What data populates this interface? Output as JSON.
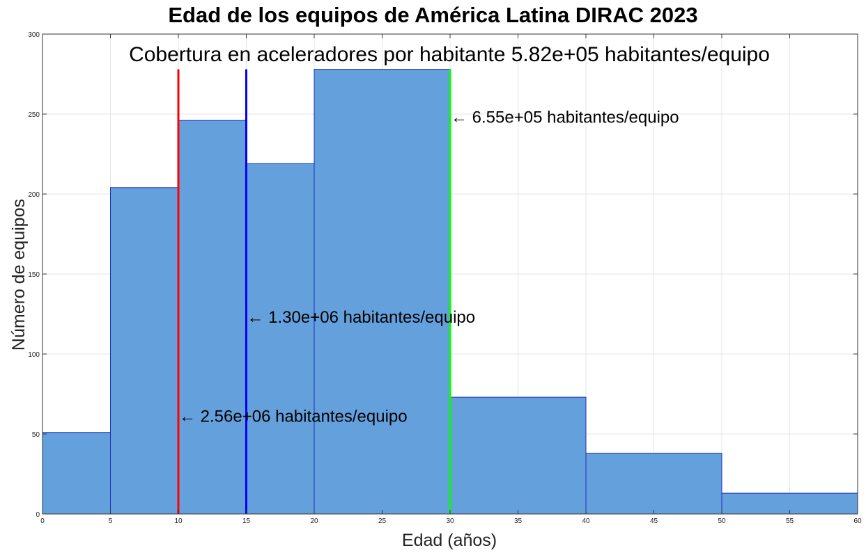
{
  "chart_data": {
    "type": "bar",
    "title": "Edad de los equipos de América Latina DIRAC 2023",
    "subtitle": "Cobertura en aceleradores por habitante 5.82e+05 habitantes/equipo",
    "xlabel": "Edad (años)",
    "ylabel": "Número de equipos",
    "xlim": [
      0,
      60
    ],
    "ylim": [
      0,
      300
    ],
    "xticks": [
      "0",
      "5",
      "10",
      "15",
      "20",
      "25",
      "30",
      "35",
      "40",
      "45",
      "50",
      "55",
      "60"
    ],
    "yticks": [
      "0",
      "50",
      "100",
      "150",
      "200",
      "250",
      "300"
    ],
    "grid": true,
    "bar_color": "#64a0dc",
    "bins": [
      {
        "x0": 0,
        "x1": 5,
        "value": 51
      },
      {
        "x0": 5,
        "x1": 10,
        "value": 204
      },
      {
        "x0": 10,
        "x1": 15,
        "value": 246
      },
      {
        "x0": 15,
        "x1": 20,
        "value": 219
      },
      {
        "x0": 20,
        "x1": 30,
        "value": 278
      },
      {
        "x0": 30,
        "x1": 40,
        "value": 73
      },
      {
        "x0": 40,
        "x1": 50,
        "value": 38
      },
      {
        "x0": 50,
        "x1": 60,
        "value": 13
      }
    ],
    "vlines": [
      {
        "x": 10,
        "color": "#ff0000",
        "label": "2.56e+06 habitantes/equipo",
        "label_y": 61
      },
      {
        "x": 15,
        "color": "#0000ff",
        "label": "1.30e+06 habitantes/equipo",
        "label_y": 123
      },
      {
        "x": 30,
        "color": "#00ff00",
        "label": "6.55e+05 habitantes/equipo",
        "label_y": 248
      }
    ],
    "vline_top": 278,
    "annotation_arrow": "←"
  }
}
